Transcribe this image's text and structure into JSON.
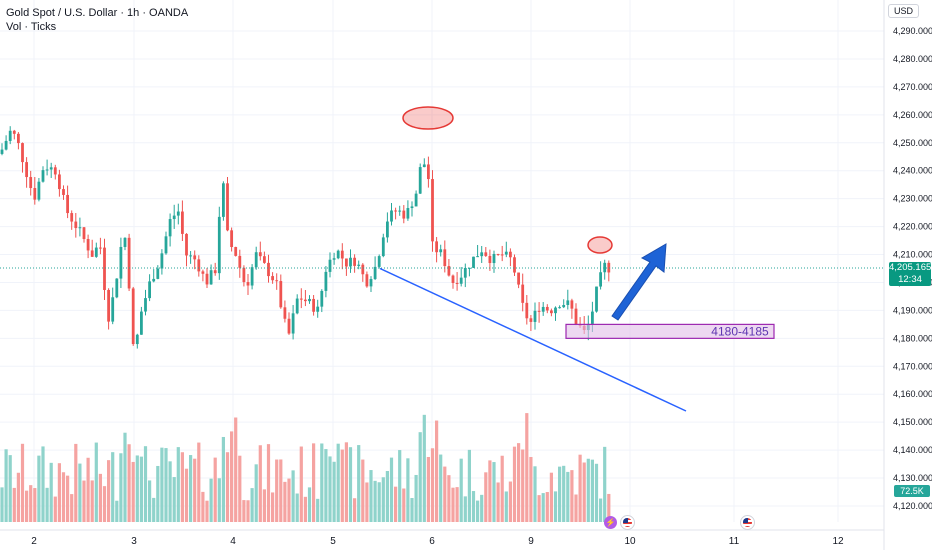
{
  "legend": {
    "symbol_line": "Gold Spot / U.S. Dollar · 1h · OANDA",
    "volume_line": "Vol · Ticks"
  },
  "currency": "USD",
  "price_axis": {
    "min": 4115,
    "max": 4296,
    "ticks": [
      "4,290.000",
      "4,280.000",
      "4,270.000",
      "4,260.000",
      "4,250.000",
      "4,240.000",
      "4,230.000",
      "4,220.000",
      "4,210.000",
      "4,200.000",
      "4,190.000",
      "4,180.000",
      "4,170.000",
      "4,160.000",
      "4,150.000",
      "4,140.000",
      "4,130.000",
      "4,120.000"
    ],
    "tick_values": [
      4290,
      4280,
      4270,
      4260,
      4250,
      4240,
      4230,
      4220,
      4210,
      4200,
      4190,
      4180,
      4170,
      4160,
      4150,
      4140,
      4130,
      4120
    ]
  },
  "time_axis": {
    "labels": [
      "2",
      "3",
      "4",
      "5",
      "6",
      "9",
      "10",
      "11",
      "12"
    ]
  },
  "current_price": {
    "value": "4,205.165",
    "countdown": "12:34",
    "level": 4205.165
  },
  "volume_badge": "72.5K",
  "annotation": {
    "zone_label": "4180-4185",
    "zone_low": 4180,
    "zone_high": 4185
  },
  "colors": {
    "bull": "#26a69a",
    "bear": "#ef5350",
    "bull_vol": "#8fd3cb",
    "bear_vol": "#f5a3a1",
    "trendline": "#2962ff",
    "zone_fill": "#e1bee7",
    "zone_border": "#9c27b0"
  },
  "icons": [
    "lightning-icon",
    "us-flag-icon",
    "us-flag-icon"
  ]
}
